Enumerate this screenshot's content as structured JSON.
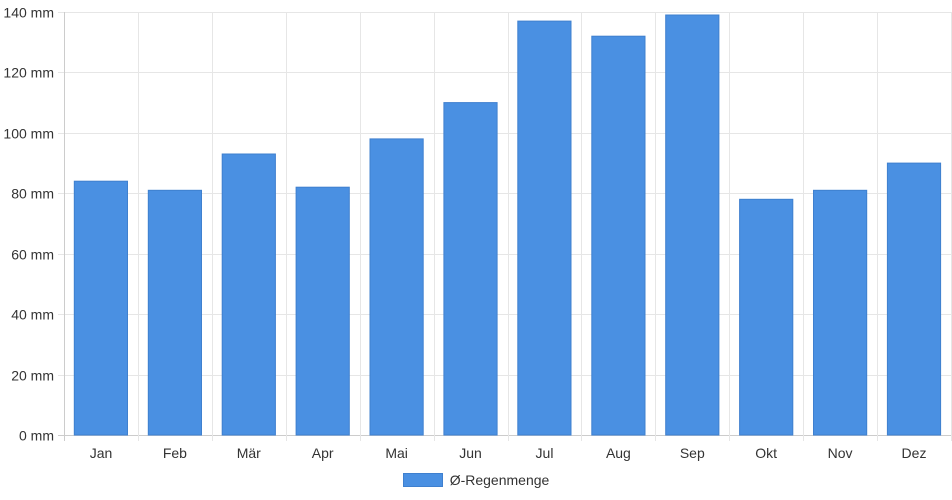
{
  "colors": {
    "bar": "#4a90e2",
    "bar_border": "#3f80cf",
    "grid": "#e6e6e6",
    "axis": "#cccccc",
    "text": "#333333"
  },
  "chart_data": {
    "type": "bar",
    "categories": [
      "Jan",
      "Feb",
      "Mär",
      "Apr",
      "Mai",
      "Jun",
      "Jul",
      "Aug",
      "Sep",
      "Okt",
      "Nov",
      "Dez"
    ],
    "series": [
      {
        "name": "Ø-Regenmenge",
        "values": [
          84,
          81,
          93,
          82,
          98,
          110,
          137,
          132,
          139,
          78,
          81,
          90
        ]
      }
    ],
    "ylim": [
      0,
      140
    ],
    "yticks": [
      0,
      20,
      40,
      60,
      80,
      100,
      120,
      140
    ],
    "yunit": " mm",
    "grid": true,
    "legend_position": "bottom"
  }
}
